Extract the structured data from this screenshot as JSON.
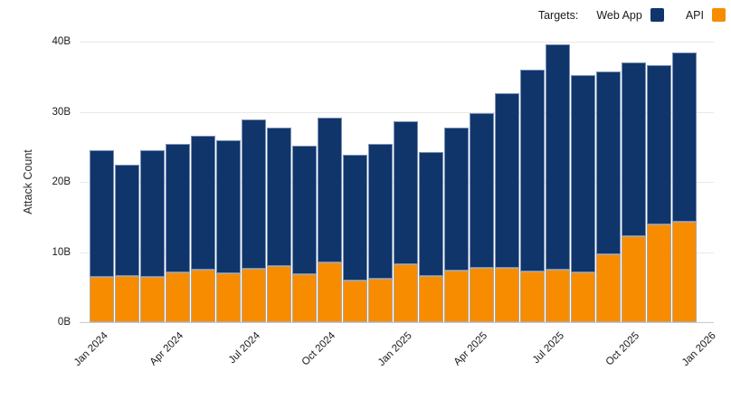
{
  "legend": {
    "title": "Targets:",
    "items": [
      {
        "label": "Web App",
        "color": "#10356B"
      },
      {
        "label": "API",
        "color": "#F78C00"
      }
    ]
  },
  "y_axis": {
    "title": "Attack Count",
    "ticks": [
      "0B",
      "10B",
      "20B",
      "30B",
      "40B"
    ]
  },
  "x_axis": {
    "ticks": [
      "Jan 2024",
      "Apr 2024",
      "Jul 2024",
      "Oct 2024",
      "Jan 2025",
      "Apr 2025",
      "Jul 2025",
      "Oct 2025",
      "Jan 2026"
    ]
  },
  "chart_data": {
    "type": "bar",
    "stacked": true,
    "title": "",
    "xlabel": "",
    "ylabel": "Attack Count",
    "unit": "B",
    "ylim": [
      0,
      40
    ],
    "grid": true,
    "legend_position": "top-right",
    "categories": [
      "Jan 2024",
      "Feb 2024",
      "Mar 2024",
      "Apr 2024",
      "May 2024",
      "Jun 2024",
      "Jul 2024",
      "Aug 2024",
      "Sep 2024",
      "Oct 2024",
      "Nov 2024",
      "Dec 2024",
      "Jan 2025",
      "Feb 2025",
      "Mar 2025",
      "Apr 2025",
      "May 2025",
      "Jun 2025",
      "Jul 2025",
      "Aug 2025",
      "Sep 2025",
      "Oct 2025",
      "Nov 2025",
      "Dec 2025"
    ],
    "series": [
      {
        "name": "API",
        "color": "#F78C00",
        "values": [
          6.5,
          6.6,
          6.4,
          7.1,
          7.5,
          7.0,
          7.6,
          8.0,
          6.8,
          8.5,
          6.0,
          6.2,
          8.2,
          6.6,
          7.3,
          7.7,
          7.8,
          7.2,
          7.5,
          7.1,
          9.7,
          12.3,
          14.0,
          14.3
        ]
      },
      {
        "name": "Web App",
        "color": "#10356B",
        "values": [
          18.0,
          15.8,
          18.1,
          18.3,
          19.1,
          19.0,
          21.3,
          19.8,
          18.4,
          20.7,
          17.9,
          19.2,
          20.5,
          17.7,
          20.4,
          22.1,
          24.9,
          28.8,
          32.1,
          28.1,
          26.1,
          24.7,
          22.6,
          24.2
        ]
      }
    ]
  }
}
